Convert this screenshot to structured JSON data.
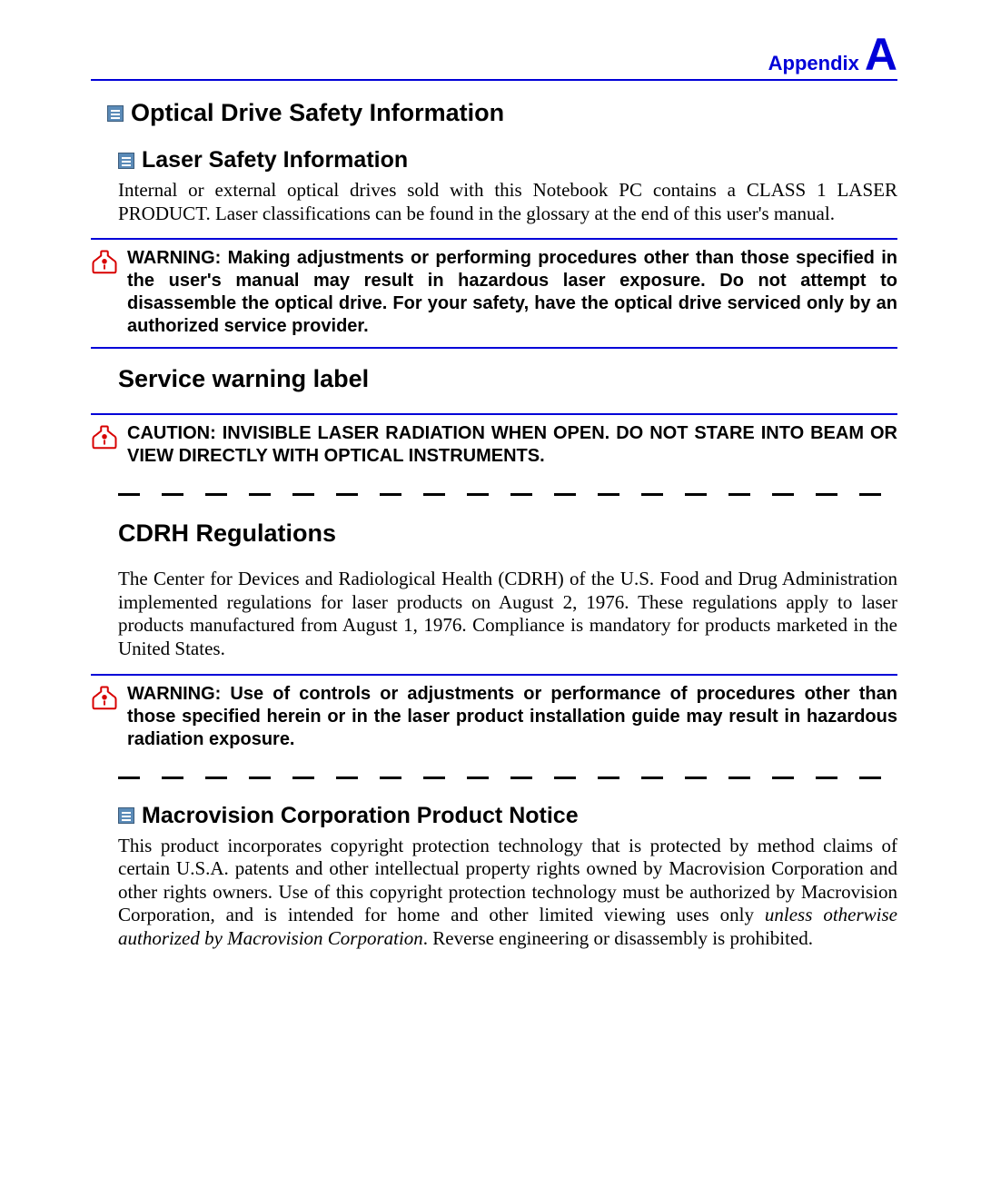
{
  "header": {
    "label": "Appendix",
    "letter": "A",
    "color": "#0000d8"
  },
  "sections": {
    "optical": {
      "title": "Optical Drive Safety Information"
    },
    "laser": {
      "title": "Laser Safety Information",
      "body": "Internal or external optical drives sold with this Notebook PC contains a CLASS 1 LASER PRODUCT. Laser classifications can be found in the glossary at the end of this user's manual."
    },
    "warning1": {
      "text": "WARNING: Making adjustments or performing procedures other than those specified in the user's manual may result in hazardous laser exposure. Do not attempt to disassemble the optical drive. For your safety, have the optical drive serviced only by an authorized service provider."
    },
    "service": {
      "title": "Service warning label"
    },
    "caution1": {
      "text": "CAUTION: INVISIBLE LASER RADIATION WHEN OPEN. DO NOT STARE INTO BEAM OR VIEW DIRECTLY WITH OPTICAL INSTRUMENTS."
    },
    "cdrh": {
      "title": "CDRH Regulations",
      "body": "The Center for Devices and Radiological Health (CDRH) of the U.S. Food and Drug Administration implemented regulations for laser products on August 2, 1976. These regulations apply to laser products manufactured from August 1, 1976. Compliance is mandatory for products marketed in the United States."
    },
    "warning2": {
      "text": "WARNING: Use of controls or adjustments or performance of procedures other than those specified herein or in the laser product installation guide may result in hazardous radiation exposure."
    },
    "macrovision": {
      "title": "Macrovision Corporation Product Notice",
      "body_pre": "This product incorporates copyright protection technology that is protected by method claims of certain U.S.A. patents and other intellectual property rights owned by Macrovision Corporation and other rights owners. Use of this copyright protection technology must be authorized by Macrovision Corporation, and is intended for home and other limited viewing uses only ",
      "body_italic": "unless otherwise authorized by Macrovision Corporation",
      "body_post": ". Reverse engineering or disassembly is prohibited."
    }
  },
  "colors": {
    "accent": "#0000d8",
    "warn": "#d80000",
    "text": "#000000",
    "bg": "#ffffff"
  }
}
